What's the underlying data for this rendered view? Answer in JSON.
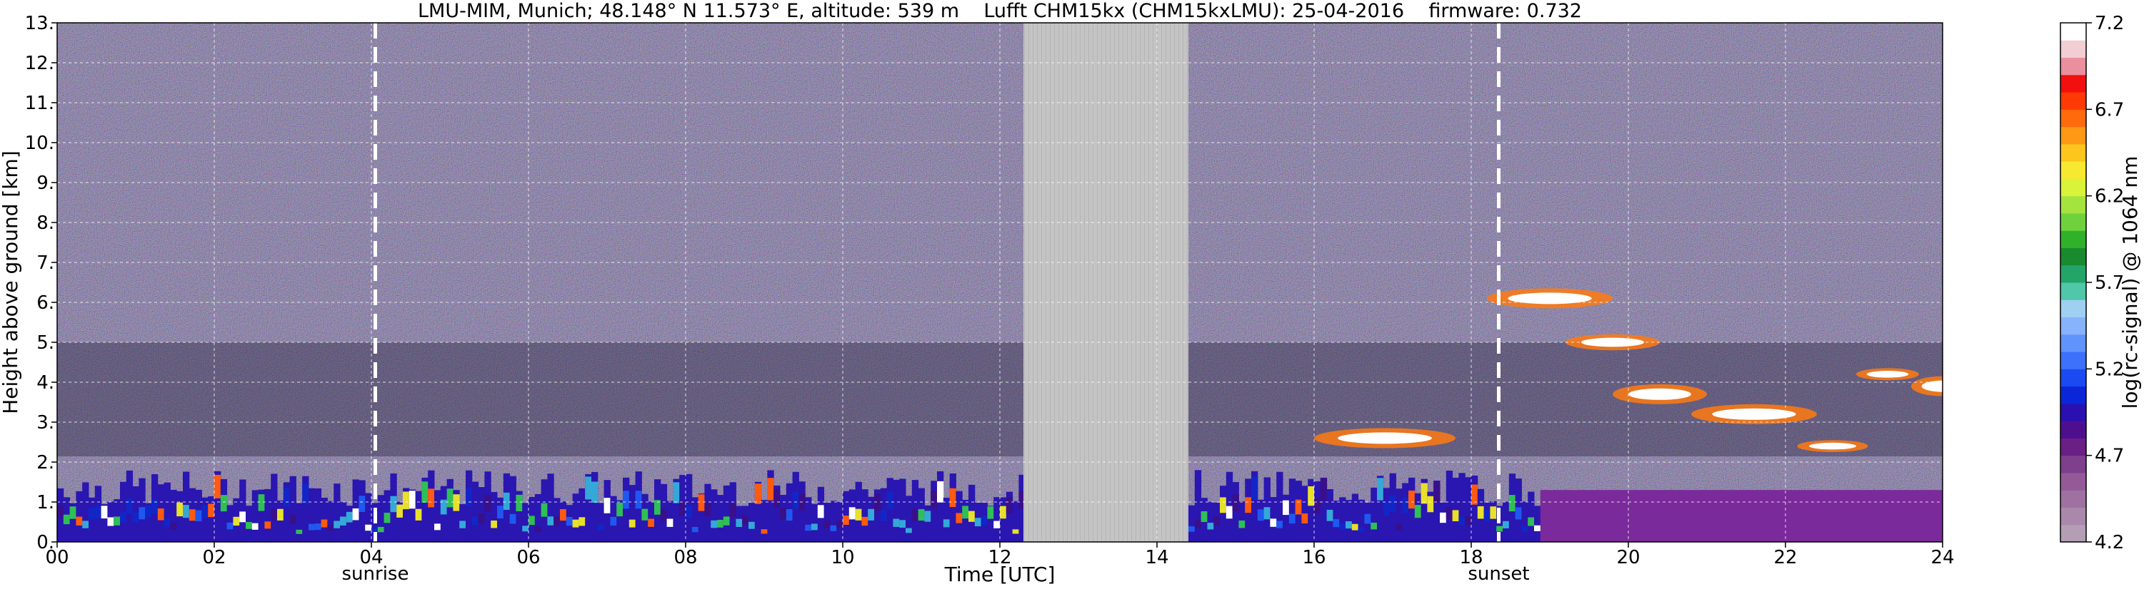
{
  "chart_data": {
    "type": "heatmap",
    "title": "LMU-MIM, Munich; 48.148° N 11.573° E, altitude: 539 m    Lufft CHM15kx (CHM15kxLMU): 25-04-2016    firmware: 0.732",
    "xlabel": "Time [UTC]",
    "ylabel": "Height above ground [km]",
    "xlim": [
      0,
      24
    ],
    "ylim": [
      0,
      13
    ],
    "x_ticks": [
      "00",
      "02",
      "04",
      "06",
      "08",
      "10",
      "12",
      "14",
      "16",
      "18",
      "20",
      "22",
      "24"
    ],
    "y_ticks": [
      "0.",
      "1.",
      "2.",
      "3.",
      "4.",
      "5.",
      "6.",
      "7.",
      "8.",
      "9.",
      "10.",
      "11.",
      "12.",
      "13."
    ],
    "grid": true,
    "no_data_interval": [
      12.3,
      14.4
    ],
    "events": [
      {
        "label": "sunrise",
        "time": 4.05
      },
      {
        "label": "sunset",
        "time": 18.35
      }
    ],
    "colorbar": {
      "label": "log(rc-signal) @ 1064 nm",
      "range": [
        4.2,
        7.2
      ],
      "tick_labels": [
        "4.2",
        "4.7",
        "5.2",
        "5.7",
        "6.2",
        "6.7",
        "7.2"
      ],
      "colors": [
        "#b39eb5",
        "#a988ab",
        "#9e71a1",
        "#935a97",
        "#7e3f8c",
        "#6a1f85",
        "#4e0f8f",
        "#2a10b0",
        "#0b26d8",
        "#1b4af2",
        "#3d70fb",
        "#6193fd",
        "#86b3fc",
        "#9fd0f2",
        "#4fc7a8",
        "#23a56a",
        "#1a8a2f",
        "#2fb22a",
        "#6fd23d",
        "#a5e33f",
        "#d9f23a",
        "#f7e92f",
        "#ffc51f",
        "#ff9814",
        "#ff6a0c",
        "#ff3a05",
        "#f20f0f",
        "#ea8f9c",
        "#f2cdd3",
        "#ffffff"
      ]
    }
  }
}
